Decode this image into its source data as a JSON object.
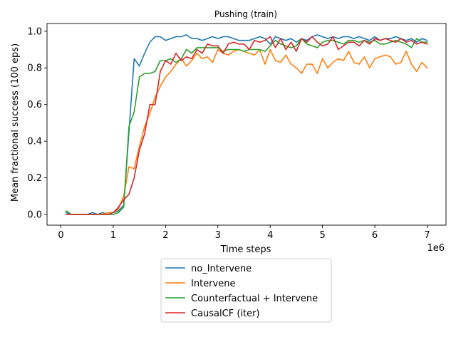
{
  "chart_data": {
    "type": "line",
    "title": "Pushing (train)",
    "xlabel": "Time steps",
    "ylabel": "Mean fractional success (100 eps)",
    "x_offset_text": "1e6",
    "xlim": [
      0,
      7000000
    ],
    "ylim": [
      0.0,
      1.0
    ],
    "xticks": [
      0,
      1000000,
      2000000,
      3000000,
      4000000,
      5000000,
      6000000,
      7000000
    ],
    "xtick_labels": [
      "0",
      "1",
      "2",
      "3",
      "4",
      "5",
      "6",
      "7"
    ],
    "yticks": [
      0.0,
      0.2,
      0.4,
      0.6,
      0.8,
      1.0
    ],
    "ytick_labels": [
      "0.0",
      "0.2",
      "0.4",
      "0.6",
      "0.8",
      "1.0"
    ],
    "grid": false,
    "legend_position": "below",
    "x": [
      100000,
      200000,
      300000,
      400000,
      500000,
      600000,
      700000,
      800000,
      900000,
      1000000,
      1100000,
      1200000,
      1300000,
      1400000,
      1500000,
      1600000,
      1700000,
      1800000,
      1900000,
      2000000,
      2100000,
      2200000,
      2300000,
      2400000,
      2500000,
      2600000,
      2700000,
      2800000,
      2900000,
      3000000,
      3100000,
      3200000,
      3300000,
      3400000,
      3500000,
      3600000,
      3700000,
      3800000,
      3900000,
      4000000,
      4100000,
      4200000,
      4300000,
      4400000,
      4500000,
      4600000,
      4700000,
      4800000,
      4900000,
      5000000,
      5100000,
      5200000,
      5300000,
      5400000,
      5500000,
      5600000,
      5700000,
      5800000,
      5900000,
      6000000,
      6100000,
      6200000,
      6300000,
      6400000,
      6500000,
      6600000,
      6700000,
      6800000,
      6900000,
      7000000
    ],
    "series": [
      {
        "name": "no_Intervene",
        "color": "#1f77b4",
        "values": [
          0.01,
          0.0,
          0.0,
          0.0,
          0.0,
          0.01,
          0.0,
          0.01,
          0.0,
          0.01,
          0.02,
          0.05,
          0.45,
          0.85,
          0.81,
          0.88,
          0.94,
          0.97,
          0.97,
          0.95,
          0.96,
          0.97,
          0.97,
          0.98,
          0.96,
          0.96,
          0.95,
          0.96,
          0.97,
          0.96,
          0.97,
          0.97,
          0.96,
          0.95,
          0.95,
          0.95,
          0.96,
          0.97,
          0.96,
          0.93,
          0.97,
          0.96,
          0.95,
          0.96,
          0.94,
          0.96,
          0.95,
          0.97,
          0.98,
          0.97,
          0.96,
          0.97,
          0.96,
          0.97,
          0.97,
          0.96,
          0.97,
          0.96,
          0.95,
          0.97,
          0.95,
          0.96,
          0.96,
          0.97,
          0.96,
          0.95,
          0.96,
          0.94,
          0.96,
          0.95
        ]
      },
      {
        "name": "Intervene",
        "color": "#ff7f0e",
        "values": [
          0.0,
          0.0,
          0.0,
          0.0,
          0.0,
          0.0,
          0.0,
          0.0,
          0.01,
          0.01,
          0.03,
          0.1,
          0.26,
          0.25,
          0.37,
          0.48,
          0.55,
          0.64,
          0.7,
          0.75,
          0.78,
          0.82,
          0.85,
          0.81,
          0.84,
          0.88,
          0.85,
          0.86,
          0.83,
          0.9,
          0.88,
          0.87,
          0.89,
          0.9,
          0.89,
          0.88,
          0.87,
          0.9,
          0.82,
          0.9,
          0.84,
          0.83,
          0.87,
          0.82,
          0.8,
          0.77,
          0.82,
          0.82,
          0.77,
          0.85,
          0.8,
          0.83,
          0.85,
          0.84,
          0.89,
          0.83,
          0.82,
          0.86,
          0.8,
          0.85,
          0.86,
          0.87,
          0.86,
          0.82,
          0.83,
          0.89,
          0.82,
          0.78,
          0.83,
          0.8
        ]
      },
      {
        "name": "Counterfactual + Intervene",
        "color": "#2ca02c",
        "values": [
          0.02,
          0.0,
          0.0,
          0.0,
          0.0,
          0.0,
          0.0,
          0.0,
          0.0,
          0.0,
          0.01,
          0.04,
          0.48,
          0.56,
          0.75,
          0.77,
          0.77,
          0.78,
          0.84,
          0.84,
          0.85,
          0.83,
          0.85,
          0.9,
          0.88,
          0.91,
          0.91,
          0.91,
          0.91,
          0.91,
          0.89,
          0.9,
          0.9,
          0.9,
          0.89,
          0.9,
          0.9,
          0.9,
          0.89,
          0.92,
          0.95,
          0.93,
          0.92,
          0.91,
          0.92,
          0.96,
          0.93,
          0.92,
          0.91,
          0.94,
          0.95,
          0.95,
          0.94,
          0.93,
          0.95,
          0.95,
          0.94,
          0.95,
          0.94,
          0.95,
          0.93,
          0.93,
          0.94,
          0.95,
          0.94,
          0.93,
          0.91,
          0.96,
          0.94,
          0.94
        ]
      },
      {
        "name": "CausalCF (iter)",
        "color": "#d62728",
        "values": [
          0.0,
          0.0,
          0.0,
          0.0,
          0.0,
          0.0,
          0.0,
          0.0,
          0.0,
          0.01,
          0.04,
          0.08,
          0.11,
          0.2,
          0.35,
          0.44,
          0.6,
          0.6,
          0.78,
          0.84,
          0.82,
          0.88,
          0.84,
          0.86,
          0.85,
          0.9,
          0.88,
          0.93,
          0.92,
          0.92,
          0.88,
          0.93,
          0.94,
          0.93,
          0.93,
          0.9,
          0.95,
          0.94,
          0.95,
          0.97,
          0.91,
          0.96,
          0.9,
          0.94,
          0.89,
          0.96,
          0.94,
          0.97,
          0.94,
          0.92,
          0.93,
          0.97,
          0.9,
          0.92,
          0.94,
          0.94,
          0.92,
          0.95,
          0.93,
          0.96,
          0.95,
          0.96,
          0.95,
          0.94,
          0.96,
          0.94,
          0.95,
          0.93,
          0.94,
          0.93
        ]
      }
    ]
  }
}
